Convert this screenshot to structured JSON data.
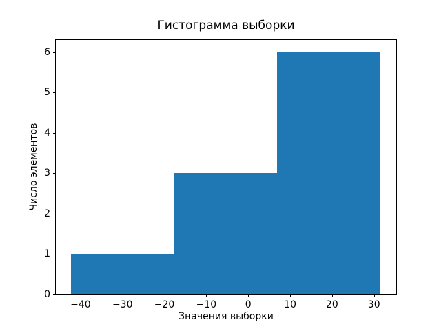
{
  "figure": {
    "background_color": "#ffffff",
    "bar_color": "#1f77b4",
    "spine_color": "#000000",
    "text_color": "#000000"
  },
  "chart_data": {
    "type": "bar",
    "chart_kind": "histogram",
    "title": "Гистограмма выборки",
    "xlabel": "Значения выборки",
    "ylabel": "Число элементов",
    "bin_edges": [
      -42.3,
      -17.7,
      6.9,
      31.6
    ],
    "counts": [
      1,
      3,
      6
    ],
    "xticks": [
      -40,
      -30,
      -20,
      -10,
      0,
      10,
      20,
      30
    ],
    "yticks": [
      0,
      1,
      2,
      3,
      4,
      5,
      6
    ],
    "xlim": [
      -45.9,
      35.3
    ],
    "ylim": [
      0,
      6.3
    ],
    "grid": false,
    "legend": false
  }
}
